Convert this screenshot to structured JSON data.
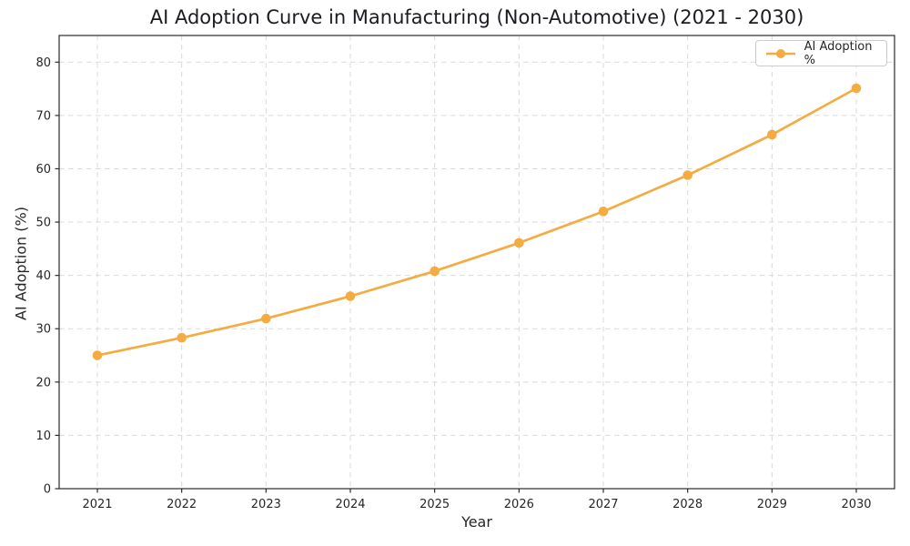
{
  "chart_data": {
    "type": "line",
    "title": "AI Adoption Curve in Manufacturing (Non-Automotive) (2021 - 2030)",
    "xlabel": "Year",
    "ylabel": "AI Adoption (%)",
    "categories": [
      "2021",
      "2022",
      "2023",
      "2024",
      "2025",
      "2026",
      "2027",
      "2028",
      "2029",
      "2030"
    ],
    "series": [
      {
        "name": "AI Adoption %",
        "values": [
          25.0,
          28.3,
          31.9,
          36.1,
          40.8,
          46.1,
          52.0,
          58.8,
          66.4,
          75.1
        ],
        "color": "#F4AC42",
        "marker": "circle",
        "line_style": "solid"
      }
    ],
    "ylim": [
      0,
      85
    ],
    "yticks": [
      0,
      10,
      20,
      30,
      40,
      50,
      60,
      70,
      80
    ],
    "grid": true,
    "grid_style": "dashed",
    "legend_position": "upper-right",
    "colors": {
      "line": "#F4AC42",
      "grid": "#D9D9D9",
      "frame": "#2A2A2A",
      "text": "#262626",
      "background": "#FFFFFF"
    }
  }
}
